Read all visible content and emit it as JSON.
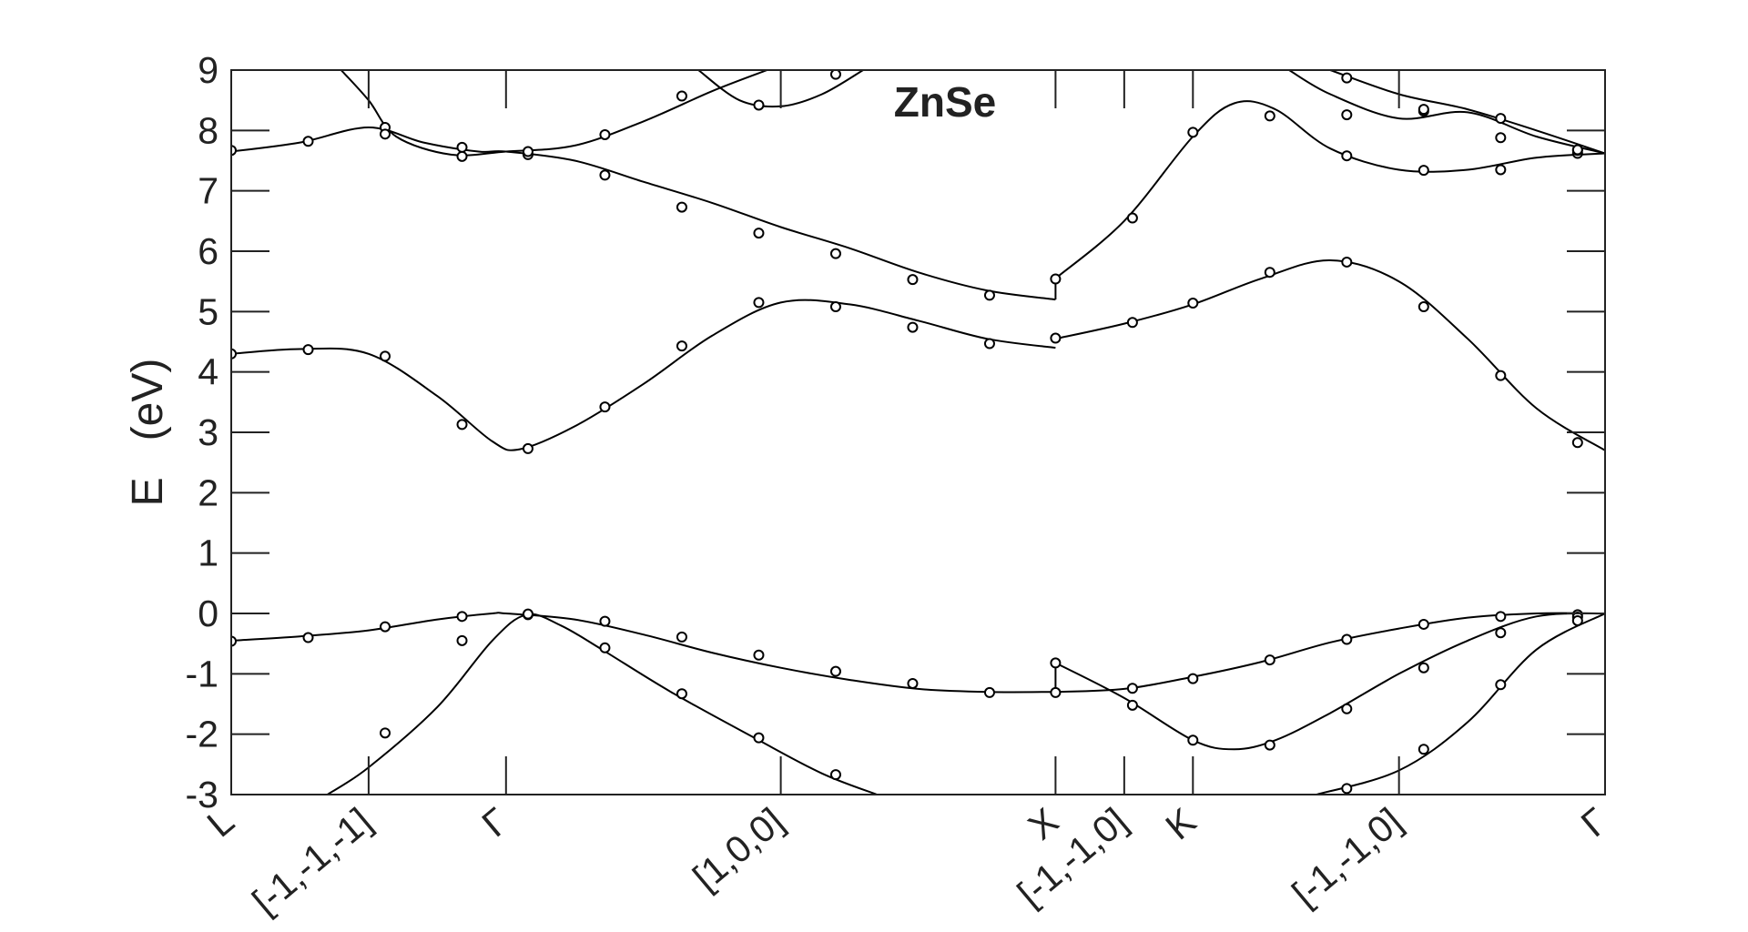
{
  "chart_data": {
    "type": "line",
    "title": "ZnSe",
    "xlabel": "",
    "ylabel": "E   (eV)",
    "ylim": [
      -3,
      9
    ],
    "xlim": [
      0,
      10
    ],
    "grid": false,
    "y_ticks": [
      "-3",
      "-2",
      "-1",
      "0",
      "1",
      "2",
      "3",
      "4",
      "5",
      "6",
      "7",
      "8",
      "9"
    ],
    "x_ticks": [
      {
        "label": "L",
        "x": 0
      },
      {
        "label": "[-1,-1,-1]",
        "x": 1.0
      },
      {
        "label": "Γ",
        "x": 2.0
      },
      {
        "label": "[1,0,0]",
        "x": 4.0
      },
      {
        "label": "X",
        "x": 6.0
      },
      {
        "label": "[-1,-1,0]",
        "x": 6.5
      },
      {
        "label": "K",
        "x": 7.0
      },
      {
        "label": "[-1,-1,0]",
        "x": 8.5
      },
      {
        "label": "Γ",
        "x": 10.0
      }
    ],
    "series": [
      {
        "points": [
          [
            0.7,
            -3
          ],
          [
            1.0,
            -2.55
          ],
          [
            1.5,
            -1.55
          ],
          [
            1.9,
            -0.45
          ],
          [
            2.15,
            -0.02
          ],
          [
            2.4,
            -0.2
          ],
          [
            2.7,
            -0.6
          ],
          [
            3.2,
            -1.3
          ],
          [
            3.8,
            -2.05
          ],
          [
            4.3,
            -2.65
          ],
          [
            4.7,
            -3
          ]
        ],
        "markers": [
          [
            1.12,
            -1.98
          ],
          [
            1.68,
            -0.45
          ],
          [
            2.16,
            -0.02
          ],
          [
            2.72,
            -0.57
          ],
          [
            3.28,
            -1.33
          ],
          [
            3.84,
            -2.06
          ],
          [
            4.4,
            -2.67
          ]
        ]
      },
      {
        "points": [
          [
            0,
            -0.45
          ],
          [
            0.5,
            -0.38
          ],
          [
            1.0,
            -0.28
          ],
          [
            1.5,
            -0.1
          ],
          [
            1.9,
            0
          ],
          [
            2.0,
            0
          ],
          [
            2.5,
            -0.1
          ],
          [
            3.0,
            -0.35
          ],
          [
            3.5,
            -0.65
          ],
          [
            4.0,
            -0.9
          ],
          [
            4.5,
            -1.1
          ],
          [
            5.0,
            -1.25
          ],
          [
            5.5,
            -1.3
          ],
          [
            6.0,
            -1.3
          ]
        ],
        "markers": [
          [
            0,
            -0.46
          ],
          [
            0.56,
            -0.4
          ],
          [
            1.12,
            -0.22
          ],
          [
            1.68,
            -0.05
          ],
          [
            2.16,
            -0.01
          ],
          [
            2.72,
            -0.13
          ],
          [
            3.28,
            -0.39
          ],
          [
            3.84,
            -0.69
          ],
          [
            4.4,
            -0.96
          ],
          [
            4.96,
            -1.16
          ],
          [
            5.52,
            -1.31
          ],
          [
            6.0,
            -1.31
          ]
        ]
      },
      {
        "points": [
          [
            6.0,
            -1.3
          ],
          [
            6.5,
            -1.25
          ],
          [
            7.0,
            -1.05
          ],
          [
            7.5,
            -0.8
          ],
          [
            8.0,
            -0.48
          ],
          [
            8.5,
            -0.25
          ],
          [
            9.0,
            -0.07
          ],
          [
            9.5,
            0
          ],
          [
            10.0,
            0
          ]
        ],
        "markers": [
          [
            6.56,
            -1.24
          ],
          [
            7.0,
            -1.08
          ],
          [
            7.56,
            -0.77
          ],
          [
            8.12,
            -0.43
          ],
          [
            8.68,
            -0.18
          ],
          [
            9.24,
            -0.05
          ],
          [
            9.8,
            -0.02
          ]
        ]
      },
      {
        "points": [
          [
            6.0,
            -0.82
          ],
          [
            6.5,
            -1.4
          ],
          [
            7.0,
            -2.1
          ],
          [
            7.3,
            -2.25
          ],
          [
            7.6,
            -2.1
          ],
          [
            8.0,
            -1.65
          ],
          [
            8.5,
            -1.0
          ],
          [
            9.0,
            -0.45
          ],
          [
            9.5,
            -0.05
          ],
          [
            10.0,
            0
          ]
        ],
        "markers": [
          [
            6.0,
            -0.82
          ],
          [
            6.56,
            -1.52
          ],
          [
            7.0,
            -2.1
          ],
          [
            7.56,
            -2.18
          ],
          [
            8.12,
            -1.58
          ],
          [
            8.68,
            -0.9
          ],
          [
            9.24,
            -0.32
          ],
          [
            9.8,
            -0.06
          ]
        ]
      },
      {
        "points": [
          [
            7.9,
            -3
          ],
          [
            8.5,
            -2.6
          ],
          [
            9.0,
            -1.8
          ],
          [
            9.5,
            -0.6
          ],
          [
            10.0,
            0
          ]
        ],
        "markers": [
          [
            8.12,
            -2.9
          ],
          [
            8.68,
            -2.25
          ],
          [
            9.24,
            -1.18
          ],
          [
            9.8,
            -0.12
          ]
        ]
      },
      {
        "points": [
          [
            0,
            4.3
          ],
          [
            0.5,
            4.38
          ],
          [
            1.0,
            4.3
          ],
          [
            1.5,
            3.6
          ],
          [
            1.9,
            2.85
          ],
          [
            2.1,
            2.72
          ],
          [
            2.5,
            3.1
          ],
          [
            3.0,
            3.8
          ],
          [
            3.5,
            4.6
          ],
          [
            4.0,
            5.15
          ],
          [
            4.5,
            5.12
          ],
          [
            5.0,
            4.85
          ],
          [
            5.5,
            4.55
          ],
          [
            6.0,
            4.4
          ]
        ],
        "markers": [
          [
            0,
            4.3
          ],
          [
            0.56,
            4.37
          ],
          [
            1.12,
            4.26
          ],
          [
            1.68,
            3.13
          ],
          [
            2.16,
            2.73
          ],
          [
            2.72,
            3.42
          ],
          [
            3.28,
            4.43
          ],
          [
            3.84,
            5.15
          ],
          [
            4.4,
            5.08
          ],
          [
            4.96,
            4.74
          ],
          [
            5.52,
            4.47
          ]
        ]
      },
      {
        "points": [
          [
            6.0,
            4.55
          ],
          [
            6.5,
            4.8
          ],
          [
            7.0,
            5.12
          ],
          [
            7.5,
            5.55
          ],
          [
            8.0,
            5.85
          ],
          [
            8.5,
            5.5
          ],
          [
            9.0,
            4.55
          ],
          [
            9.5,
            3.4
          ],
          [
            10.0,
            2.7
          ]
        ],
        "markers": [
          [
            6.0,
            4.56
          ],
          [
            6.56,
            4.82
          ],
          [
            7.0,
            5.14
          ],
          [
            7.56,
            5.65
          ],
          [
            8.12,
            5.82
          ],
          [
            8.68,
            5.08
          ],
          [
            9.24,
            3.94
          ],
          [
            9.8,
            2.83
          ]
        ]
      },
      {
        "points": [
          [
            0,
            7.65
          ],
          [
            0.5,
            7.8
          ],
          [
            1.0,
            8.05
          ],
          [
            1.4,
            7.8
          ],
          [
            1.8,
            7.65
          ],
          [
            2.0,
            7.65
          ],
          [
            2.5,
            7.5
          ],
          [
            3.0,
            7.15
          ],
          [
            3.5,
            6.8
          ],
          [
            4.0,
            6.4
          ],
          [
            4.5,
            6.05
          ],
          [
            5.0,
            5.65
          ],
          [
            5.5,
            5.35
          ],
          [
            6.0,
            5.2
          ]
        ],
        "markers": [
          [
            0,
            7.67
          ],
          [
            0.56,
            7.82
          ],
          [
            1.12,
            8.05
          ],
          [
            1.68,
            7.72
          ],
          [
            2.16,
            7.6
          ],
          [
            2.72,
            7.26
          ],
          [
            3.28,
            6.73
          ],
          [
            3.84,
            6.3
          ],
          [
            4.4,
            5.96
          ],
          [
            4.96,
            5.53
          ],
          [
            5.52,
            5.27
          ]
        ]
      },
      {
        "points": [
          [
            6.0,
            5.55
          ],
          [
            6.5,
            6.5
          ],
          [
            7.0,
            7.9
          ],
          [
            7.3,
            8.45
          ],
          [
            7.6,
            8.35
          ],
          [
            8.0,
            7.7
          ],
          [
            8.5,
            7.35
          ],
          [
            9.0,
            7.35
          ],
          [
            9.5,
            7.55
          ],
          [
            10.0,
            7.62
          ]
        ],
        "markers": [
          [
            6.0,
            5.54
          ],
          [
            6.56,
            6.55
          ],
          [
            7.0,
            7.97
          ],
          [
            7.56,
            8.24
          ],
          [
            8.12,
            7.58
          ],
          [
            8.68,
            7.34
          ],
          [
            9.24,
            7.35
          ],
          [
            9.8,
            7.62
          ]
        ]
      },
      {
        "points": [
          [
            0.8,
            9
          ],
          [
            1.0,
            8.5
          ],
          [
            1.2,
            7.9
          ],
          [
            1.6,
            7.6
          ],
          [
            2.0,
            7.65
          ],
          [
            2.5,
            7.75
          ],
          [
            3.0,
            8.15
          ],
          [
            3.5,
            8.65
          ],
          [
            3.9,
            9
          ]
        ],
        "markers": [
          [
            1.12,
            7.94
          ],
          [
            1.68,
            7.57
          ],
          [
            2.16,
            7.65
          ],
          [
            2.72,
            7.93
          ],
          [
            3.28,
            8.57
          ]
        ]
      },
      {
        "points": [
          [
            3.4,
            9
          ],
          [
            3.7,
            8.5
          ],
          [
            4.0,
            8.4
          ],
          [
            4.3,
            8.6
          ],
          [
            4.6,
            9
          ]
        ],
        "markers": [
          [
            3.84,
            8.42
          ],
          [
            4.4,
            8.93
          ]
        ]
      },
      {
        "points": [
          [
            7.7,
            9
          ],
          [
            8.0,
            8.6
          ],
          [
            8.5,
            8.2
          ],
          [
            9.0,
            8.3
          ],
          [
            9.5,
            7.9
          ],
          [
            10.0,
            7.62
          ]
        ],
        "markers": [
          [
            8.12,
            8.26
          ],
          [
            8.68,
            8.32
          ],
          [
            9.24,
            7.88
          ],
          [
            9.8,
            7.67
          ]
        ]
      },
      {
        "points": [
          [
            8.0,
            9
          ],
          [
            8.5,
            8.6
          ],
          [
            9.0,
            8.35
          ],
          [
            9.5,
            8.0
          ],
          [
            10.0,
            7.62
          ]
        ],
        "markers": [
          [
            8.12,
            8.87
          ],
          [
            8.68,
            8.35
          ],
          [
            9.24,
            8.2
          ],
          [
            9.8,
            7.68
          ]
        ]
      }
    ]
  }
}
